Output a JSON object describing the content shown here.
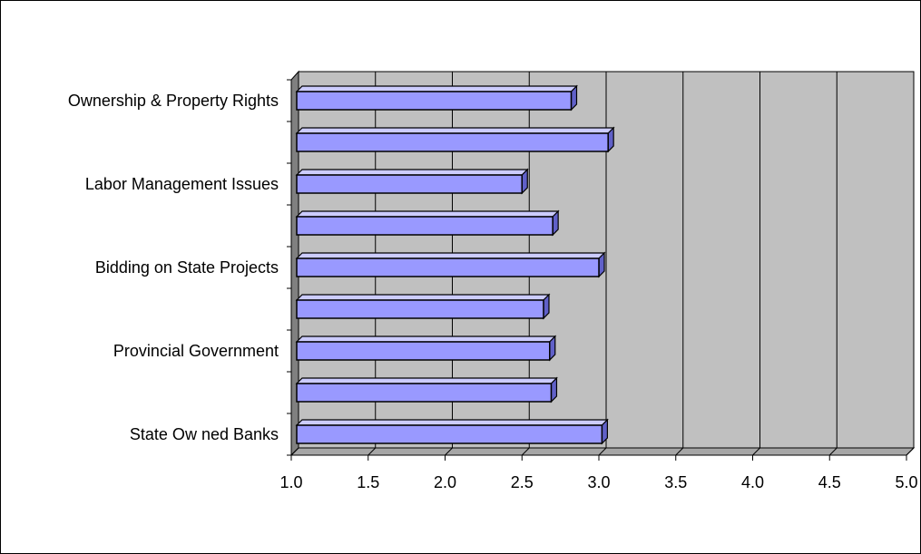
{
  "chart_data": {
    "type": "bar",
    "orientation": "horizontal",
    "style": "3d",
    "title": "",
    "xlabel": "",
    "ylabel": "",
    "xlim": [
      1.0,
      5.0
    ],
    "x_ticks": [
      "1.0",
      "1.5",
      "2.0",
      "2.5",
      "3.0",
      "3.5",
      "4.0",
      "4.5",
      "5.0"
    ],
    "categories": [
      "Ownership & Property Rights",
      "",
      "Labor Management Issues",
      "",
      "Bidding on State  Projects",
      "",
      "Provincial Government",
      "",
      "State Ow ned Banks"
    ],
    "values": [
      2.82,
      3.06,
      2.5,
      2.7,
      3.0,
      2.64,
      2.68,
      2.69,
      3.02
    ],
    "grid": true,
    "legend": "none",
    "colors": {
      "bar_front": "#9999ff",
      "bar_top": "#ccccff",
      "bar_side": "#6060c8",
      "plot_back": "#c0c0c0",
      "floor": "#a6a6a6",
      "left_wall": "#808080",
      "gridline": "#000000"
    }
  }
}
